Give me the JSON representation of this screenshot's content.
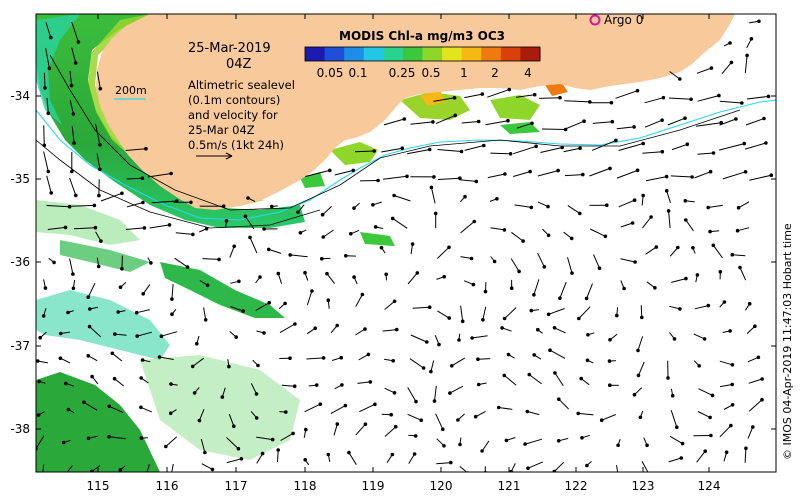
{
  "title": {
    "date": "25-Mar-2019",
    "time": "04Z"
  },
  "colorbar": {
    "title": "MODIS Chl-a mg/m3 OC3",
    "tick_labels": [
      "0.05",
      "0.1",
      "0.25",
      "0.5",
      "1",
      "2",
      "4"
    ],
    "colors": [
      "#1b1bb0",
      "#1f4fd8",
      "#1c8ee8",
      "#22c7e6",
      "#2ad28f",
      "#3cc83c",
      "#8fd62a",
      "#e3e51c",
      "#f5b814",
      "#ef7a10",
      "#d9400c",
      "#a81c0c"
    ]
  },
  "legend": {
    "contour_label": "200m",
    "description": [
      "Altimetric sealevel",
      "(0.1m contours)",
      "and velocity for",
      "25-Mar 04Z"
    ],
    "velocity_scale": "0.5m/s (1kt 24h)"
  },
  "argo": {
    "label": "Argo 0",
    "color": "#e0149c"
  },
  "axes": {
    "x_ticks": [
      "115",
      "116",
      "117",
      "118",
      "119",
      "120",
      "121",
      "122",
      "123",
      "124"
    ],
    "y_ticks": [
      "-34",
      "-35",
      "-36",
      "-37",
      "-38"
    ]
  },
  "colors": {
    "land": "#f8c99a",
    "ocean": "#ffffff",
    "shelf_contour": "#27d8f0"
  },
  "credit": "© IMOS 04-Apr-2019 11:47:03 Hobart time"
}
